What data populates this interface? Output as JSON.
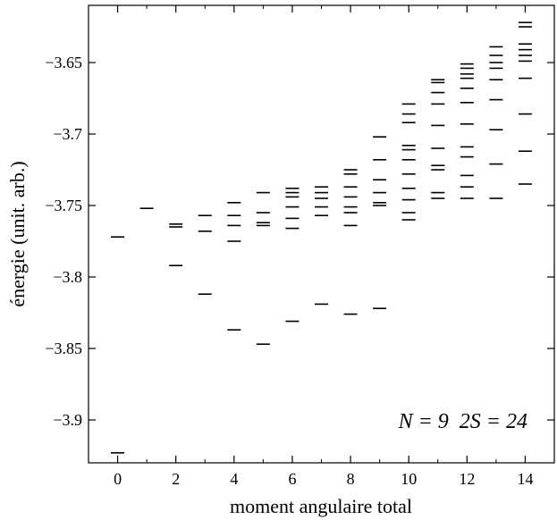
{
  "chart_data": {
    "type": "scatter",
    "marker": "horizontal-dash",
    "xlabel": "moment angulaire total",
    "ylabel": "énergie (unit. arb.)",
    "xlim": [
      -1,
      15
    ],
    "ylim": [
      -3.93,
      -3.61
    ],
    "xticks": [
      0,
      2,
      4,
      6,
      8,
      10,
      12,
      14
    ],
    "xminor_ticks": [
      1,
      3,
      5,
      7,
      9,
      11,
      13
    ],
    "yticks": [
      -3.9,
      -3.85,
      -3.8,
      -3.75,
      -3.7,
      -3.65
    ],
    "ytick_labels": [
      "-3.9",
      "-3.85",
      "-3.8",
      "-3.75",
      "-3.7",
      "-3.65"
    ],
    "grid": false,
    "annotation": "N = 9  2S = 24",
    "levels": [
      {
        "L": 0,
        "E": [
          -3.923,
          -3.772
        ]
      },
      {
        "L": 1,
        "E": [
          -3.752
        ]
      },
      {
        "L": 2,
        "E": [
          -3.792,
          -3.765,
          -3.763
        ]
      },
      {
        "L": 3,
        "E": [
          -3.812,
          -3.768,
          -3.757
        ]
      },
      {
        "L": 4,
        "E": [
          -3.837,
          -3.775,
          -3.764,
          -3.757,
          -3.748
        ]
      },
      {
        "L": 5,
        "E": [
          -3.847,
          -3.764,
          -3.762,
          -3.755,
          -3.741
        ]
      },
      {
        "L": 6,
        "E": [
          -3.831,
          -3.766,
          -3.759,
          -3.751,
          -3.744,
          -3.741,
          -3.738
        ]
      },
      {
        "L": 7,
        "E": [
          -3.819,
          -3.757,
          -3.751,
          -3.745,
          -3.741,
          -3.737
        ]
      },
      {
        "L": 8,
        "E": [
          -3.826,
          -3.764,
          -3.755,
          -3.751,
          -3.744,
          -3.737,
          -3.728,
          -3.725
        ]
      },
      {
        "L": 9,
        "E": [
          -3.822,
          -3.75,
          -3.748,
          -3.741,
          -3.732,
          -3.718,
          -3.702
        ]
      },
      {
        "L": 10,
        "E": [
          -3.76,
          -3.755,
          -3.746,
          -3.738,
          -3.728,
          -3.718,
          -3.711,
          -3.708,
          -3.692,
          -3.686,
          -3.679
        ]
      },
      {
        "L": 11,
        "E": [
          -3.745,
          -3.741,
          -3.725,
          -3.722,
          -3.71,
          -3.694,
          -3.679,
          -3.671,
          -3.664,
          -3.662
        ]
      },
      {
        "L": 12,
        "E": [
          -3.745,
          -3.737,
          -3.729,
          -3.716,
          -3.709,
          -3.693,
          -3.678,
          -3.668,
          -3.661,
          -3.658,
          -3.654,
          -3.651
        ]
      },
      {
        "L": 13,
        "E": [
          -3.745,
          -3.721,
          -3.697,
          -3.676,
          -3.662,
          -3.654,
          -3.65,
          -3.645,
          -3.639
        ]
      },
      {
        "L": 14,
        "E": [
          -3.735,
          -3.712,
          -3.686,
          -3.661,
          -3.649,
          -3.645,
          -3.641,
          -3.637,
          -3.625,
          -3.622
        ]
      }
    ]
  }
}
